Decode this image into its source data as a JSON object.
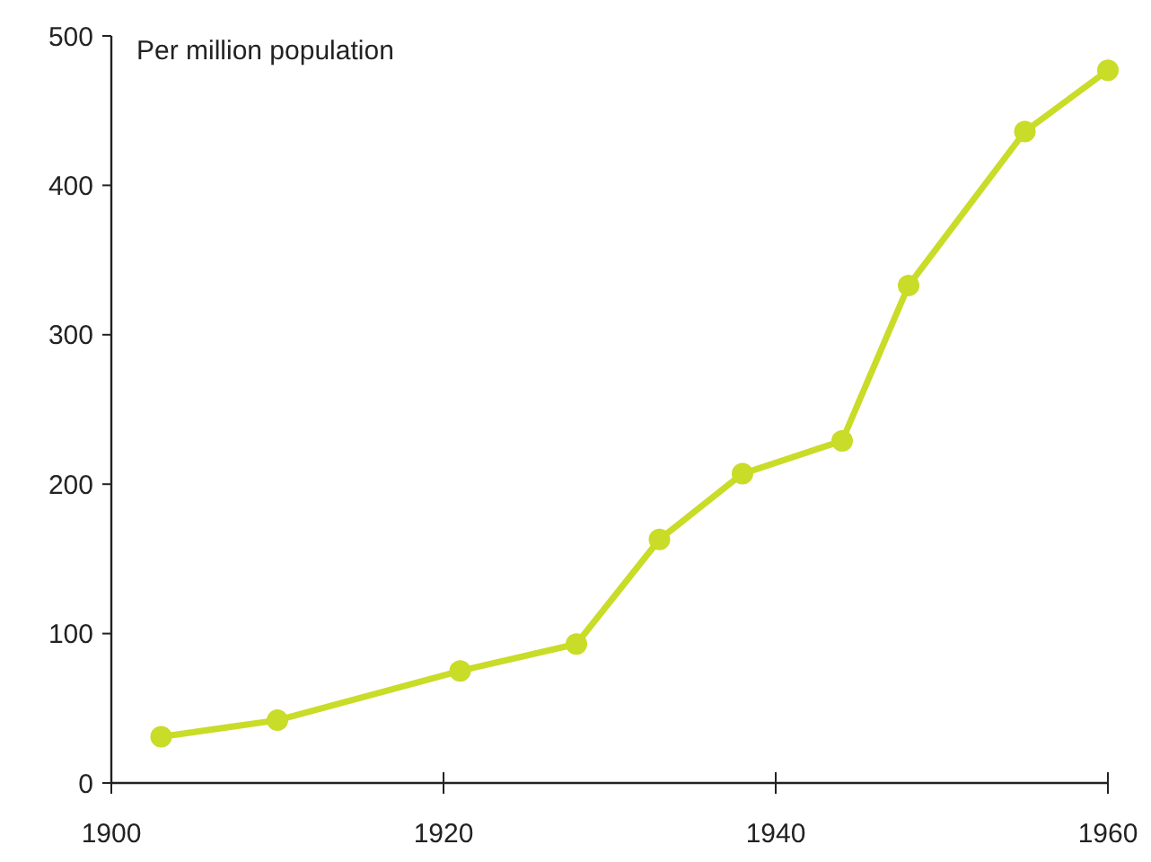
{
  "chart_data": {
    "type": "line",
    "ylabel": "Per million population",
    "x": [
      1903,
      1910,
      1921,
      1928,
      1933,
      1938,
      1944,
      1948,
      1955,
      1960
    ],
    "series": [
      {
        "color": "#c8dc28",
        "values": [
          31,
          42,
          75,
          93,
          163,
          207,
          229,
          333,
          436,
          477
        ]
      }
    ],
    "xlim": [
      1900,
      1960
    ],
    "xticks": [
      1900,
      1920,
      1940,
      1960
    ],
    "ylim": [
      0,
      500
    ],
    "yticks": [
      0,
      100,
      200,
      300,
      400,
      500
    ],
    "grid": false,
    "marker": "circle",
    "line_style": "solid"
  }
}
